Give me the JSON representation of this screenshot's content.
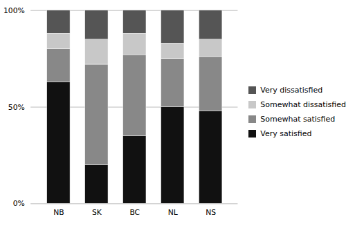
{
  "chart_data": {
    "type": "bar",
    "stacked": true,
    "categories": [
      "NB",
      "SK",
      "BC",
      "NL",
      "NS"
    ],
    "series": [
      {
        "name": "Very satisfied",
        "color": "#111111",
        "values": [
          63,
          20,
          35,
          50,
          48
        ]
      },
      {
        "name": "Somewhat satisfied",
        "color": "#888888",
        "values": [
          17,
          52,
          42,
          25,
          28
        ]
      },
      {
        "name": "Somewhat dissatisfied",
        "color": "#c8c8c8",
        "values": [
          8,
          13,
          11,
          8,
          9
        ]
      },
      {
        "name": "Very dissatisfied",
        "color": "#555555",
        "values": [
          12,
          15,
          12,
          17,
          15
        ]
      }
    ],
    "ylim": [
      0,
      100
    ],
    "yticks": [
      {
        "value": 0,
        "label": "0%"
      },
      {
        "value": 50,
        "label": "50%"
      },
      {
        "value": 100,
        "label": "100%"
      }
    ],
    "grid": true,
    "legend": "right"
  }
}
